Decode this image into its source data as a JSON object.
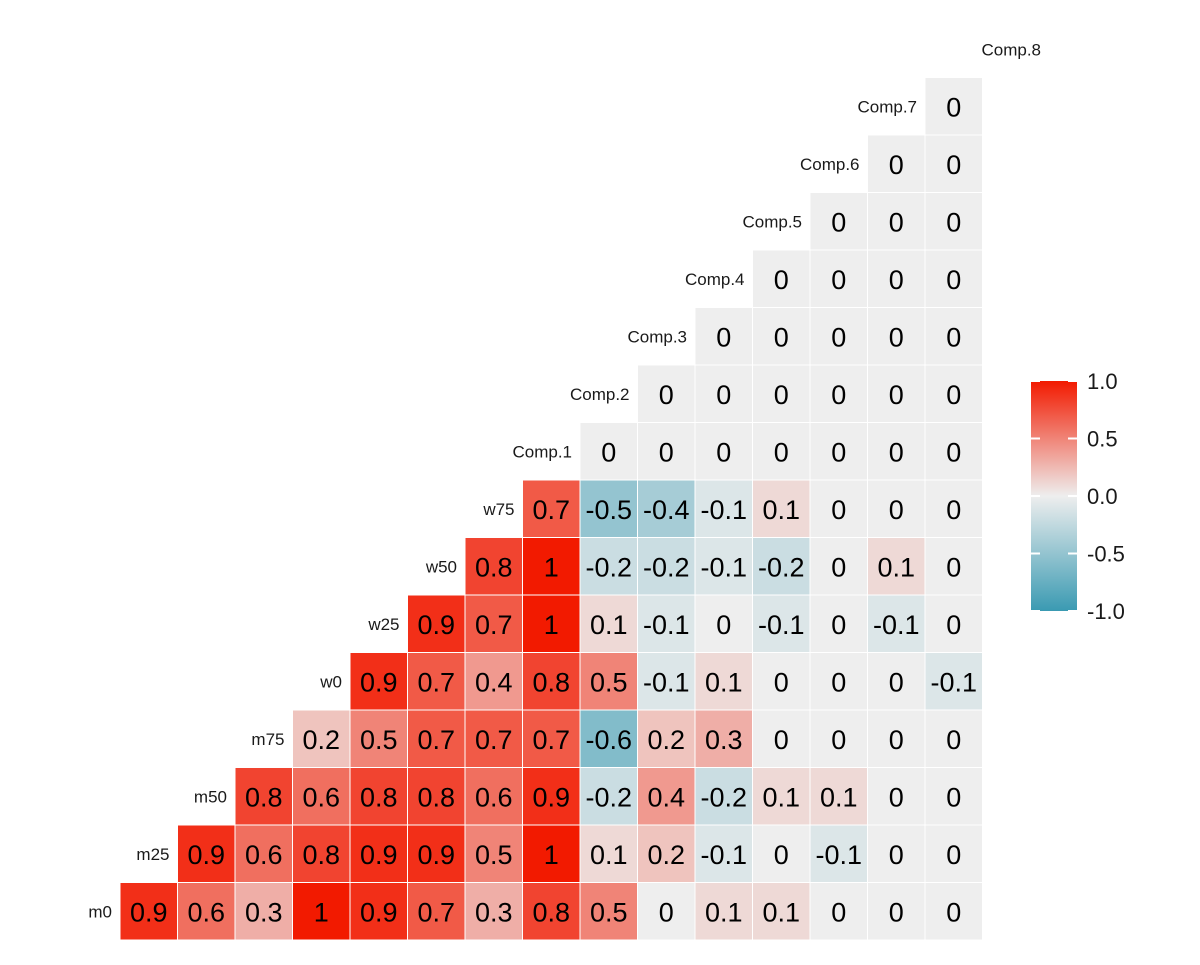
{
  "chart_data": {
    "type": "heatmap",
    "title": "",
    "variables": [
      "m0",
      "m25",
      "m50",
      "m75",
      "w0",
      "w25",
      "w50",
      "w75",
      "Comp.1",
      "Comp.2",
      "Comp.3",
      "Comp.4",
      "Comp.5",
      "Comp.6",
      "Comp.7",
      "Comp.8"
    ],
    "rows": [
      {
        "label": "m0",
        "values": [
          0.9,
          0.6,
          0.3,
          1,
          0.9,
          0.7,
          0.3,
          0.8,
          0.5,
          0,
          0.1,
          0.1,
          0,
          0,
          0
        ]
      },
      {
        "label": "m25",
        "values": [
          0.9,
          0.6,
          0.8,
          0.9,
          0.9,
          0.5,
          1,
          0.1,
          0.2,
          -0.1,
          0,
          -0.1,
          0,
          0
        ]
      },
      {
        "label": "m50",
        "values": [
          0.8,
          0.6,
          0.8,
          0.8,
          0.6,
          0.9,
          -0.2,
          0.4,
          -0.2,
          0.1,
          0.1,
          0,
          0
        ]
      },
      {
        "label": "m75",
        "values": [
          0.2,
          0.5,
          0.7,
          0.7,
          0.7,
          -0.6,
          0.2,
          0.3,
          0,
          0,
          0,
          0
        ]
      },
      {
        "label": "w0",
        "values": [
          0.9,
          0.7,
          0.4,
          0.8,
          0.5,
          -0.1,
          0.1,
          0,
          0,
          0,
          -0.1
        ]
      },
      {
        "label": "w25",
        "values": [
          0.9,
          0.7,
          1,
          0.1,
          -0.1,
          0,
          -0.1,
          0,
          -0.1,
          0
        ]
      },
      {
        "label": "w50",
        "values": [
          0.8,
          1,
          -0.2,
          -0.2,
          -0.1,
          -0.2,
          0,
          0.1,
          0
        ]
      },
      {
        "label": "w75",
        "values": [
          0.7,
          -0.5,
          -0.4,
          -0.1,
          0.1,
          0,
          0,
          0
        ]
      },
      {
        "label": "Comp.1",
        "values": [
          0,
          0,
          0,
          0,
          0,
          0,
          0
        ]
      },
      {
        "label": "Comp.2",
        "values": [
          0,
          0,
          0,
          0,
          0,
          0
        ]
      },
      {
        "label": "Comp.3",
        "values": [
          0,
          0,
          0,
          0,
          0
        ]
      },
      {
        "label": "Comp.4",
        "values": [
          0,
          0,
          0,
          0
        ]
      },
      {
        "label": "Comp.5",
        "values": [
          0,
          0,
          0
        ]
      },
      {
        "label": "Comp.6",
        "values": [
          0,
          0
        ]
      },
      {
        "label": "Comp.7",
        "values": [
          0
        ]
      }
    ],
    "color_scale": {
      "low": "#3A9AB2",
      "mid": "#EEEEEE",
      "high": "#F21A00",
      "range": [
        -1,
        1
      ]
    },
    "legend": {
      "position": "right",
      "ticks": [
        "1.0",
        "0.5",
        "0.0",
        "-0.5",
        "-1.0"
      ]
    }
  }
}
